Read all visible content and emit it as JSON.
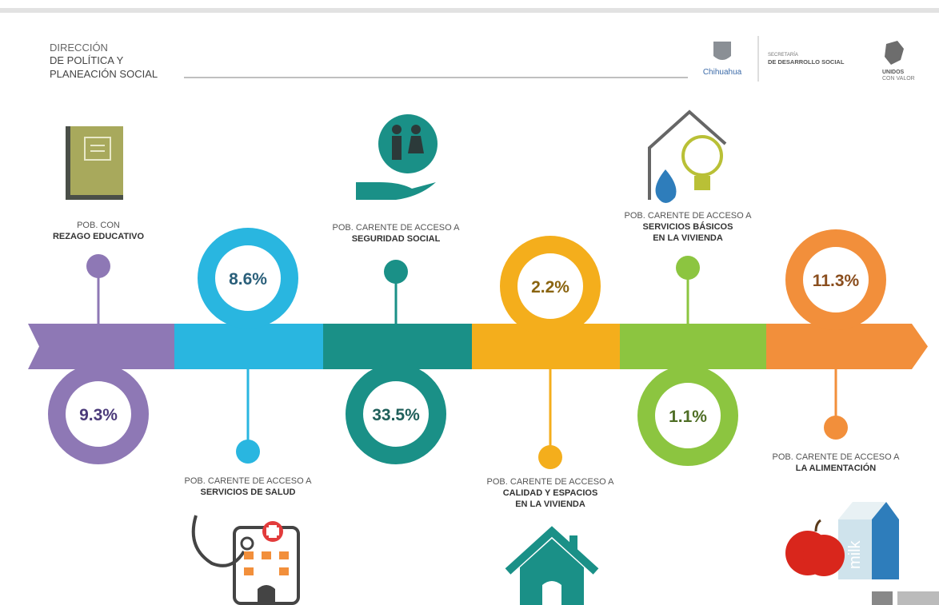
{
  "header": {
    "lines": [
      "DIRECCIÓN",
      "DE POLÍTICA Y",
      "PLANEACIÓN SOCIAL"
    ],
    "logos": {
      "state": "Chihuahua",
      "secretaria": "SECRETARÍA",
      "department": "DE DESARROLLO SOCIAL",
      "slogan1": "UNIDOS",
      "slogan2": "CON VALOR"
    }
  },
  "items": [
    {
      "caption": [
        "POB. CON"
      ],
      "bold": [
        "REZAGO EDUCATIVO"
      ],
      "value": "9.3%",
      "color": "#8e78b5",
      "text_color": "#4b3a7a"
    },
    {
      "caption": [
        "POB. CARENTE DE ACCESO A"
      ],
      "bold": [
        "SERVICIOS DE SALUD"
      ],
      "value": "8.6%",
      "color": "#29b6e0",
      "text_color": "#2a5f7a"
    },
    {
      "caption": [
        "POB. CARENTE DE ACCESO A"
      ],
      "bold": [
        "SEGURIDAD SOCIAL"
      ],
      "value": "33.5%",
      "color": "#1a9087",
      "text_color": "#1f5f5a"
    },
    {
      "caption": [
        "POB. CARENTE DE ACCESO A"
      ],
      "bold": [
        "CALIDAD Y ESPACIOS",
        "EN LA VIVIENDA"
      ],
      "value": "2.2%",
      "color": "#f4ae1c",
      "text_color": "#8a6410"
    },
    {
      "caption": [
        "POB. CARENTE DE ACCESO A"
      ],
      "bold": [
        "SERVICIOS BÁSICOS",
        "EN LA VIVIENDA"
      ],
      "value": "1.1%",
      "color": "#8cc540",
      "text_color": "#4f6e25"
    },
    {
      "caption": [
        "POB. CARENTE DE ACCESO A"
      ],
      "bold": [
        "LA ALIMENTACIÓN"
      ],
      "value": "11.3%",
      "color": "#f28f3b",
      "text_color": "#8a4e1e"
    }
  ],
  "icon_text": "milk"
}
